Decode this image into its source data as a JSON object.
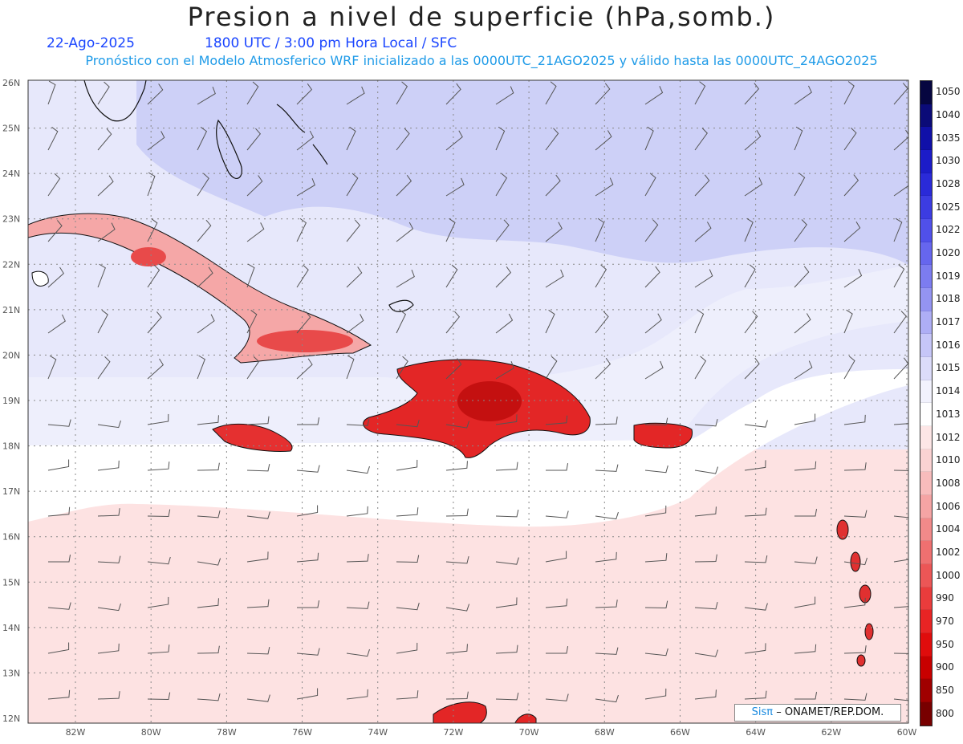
{
  "header": {
    "title": "Presion a nivel de superficie (hPa,somb.)",
    "date": "22-Ago-2025",
    "time_info": "1800 UTC / 3:00 pm Hora Local / SFC",
    "model_info": "Pronóstico con el Modelo Atmosferico WRF inicializado a las 0000UTC_21AGO2025 y válido hasta las 0000UTC_24AGO2025"
  },
  "map": {
    "lat_labels": [
      "26N",
      "25N",
      "24N",
      "23N",
      "22N",
      "21N",
      "20N",
      "19N",
      "18N",
      "17N",
      "16N",
      "15N",
      "14N",
      "13N",
      "12N"
    ],
    "lon_labels": [
      "82W",
      "80W",
      "78W",
      "76W",
      "74W",
      "72W",
      "70W",
      "68W",
      "66W",
      "64W",
      "62W",
      "60W"
    ],
    "colors": {
      "high": "#c9cdf7",
      "mid": "#e4e6fb",
      "neutral": "#ffffff",
      "low": "#fde2e2",
      "land": "#e83a3a"
    }
  },
  "colorbar": {
    "levels": [
      "1050",
      "1040",
      "1035",
      "1030",
      "1028",
      "1025",
      "1022",
      "1020",
      "1019",
      "1018",
      "1017",
      "1016",
      "1015",
      "1014",
      "1013",
      "1012",
      "1010",
      "1008",
      "1006",
      "1004",
      "1002",
      "1000",
      "990",
      "970",
      "950",
      "900",
      "850",
      "800"
    ],
    "colors": [
      "#060640",
      "#0b0b78",
      "#1010a8",
      "#1c1cc8",
      "#2a2ad8",
      "#3c3ce2",
      "#5050ea",
      "#6666ee",
      "#7c7cf0",
      "#9494f2",
      "#aeaef5",
      "#c6c6f8",
      "#dcdcfa",
      "#f2f2fd",
      "#ffffff",
      "#fde6e6",
      "#fbd2d2",
      "#f8bcbc",
      "#f5a4a4",
      "#f28a8a",
      "#ef7070",
      "#ec5656",
      "#ea3c3c",
      "#e82424",
      "#e00c0c",
      "#c80000",
      "#a00000",
      "#780000"
    ]
  },
  "credit": {
    "logo": "Sisπ",
    "text": "– ONAMET/REP.DOM."
  }
}
